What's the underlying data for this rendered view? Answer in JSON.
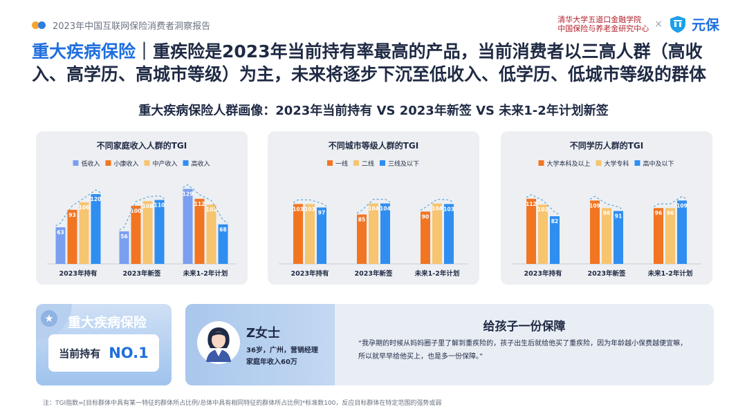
{
  "header": {
    "report_title": "2023年中国互联网保险消费者洞察报告",
    "institute_line1": "清华大学五道口金融学院",
    "institute_line2": "中国保险与养老金研究中心",
    "times": "×",
    "brand": "元保"
  },
  "headline": {
    "accent": "重大疾病保险",
    "text": "｜重疾险是2023年当前持有率最高的产品，当前消费者以三高人群（高收入、高学历、高城市等级）为主，未来将逐步下沉至低收入、低学历、低城市等级的群体"
  },
  "subtitle": "重大疾病保险人群画像：2023年当前持有 VS 2023年新签 VS 未来1-2年计划新签",
  "colors": {
    "blue_light": "#7a9ff0",
    "orange": "#f27522",
    "yellow": "#f7c470",
    "blue": "#2f8ef0",
    "accent": "#1f6fde",
    "dash": "#5aa6dd"
  },
  "chart_data": [
    {
      "type": "bar",
      "title": "不同家庭收入人群的TGI",
      "categories": [
        "2023年持有",
        "2023年新签",
        "未来1-2年计划"
      ],
      "series": [
        {
          "name": "低收入",
          "color": "#7a9ff0",
          "values": [
            63,
            56,
            129
          ]
        },
        {
          "name": "小康收入",
          "color": "#f27522",
          "values": [
            93,
            100,
            112
          ]
        },
        {
          "name": "中产收入",
          "color": "#f7c470",
          "values": [
            106,
            108,
            102
          ]
        },
        {
          "name": "高收入",
          "color": "#2f8ef0",
          "values": [
            120,
            110,
            68
          ]
        }
      ],
      "ylim": [
        0,
        145
      ],
      "grid": false,
      "legend": "top"
    },
    {
      "type": "bar",
      "title": "不同城市等级人群的TGI",
      "categories": [
        "2023年持有",
        "2023年新签",
        "未来1-2年计划"
      ],
      "series": [
        {
          "name": "一线",
          "color": "#f27522",
          "values": [
            103,
            85,
            90
          ]
        },
        {
          "name": "二线",
          "color": "#f7c470",
          "values": [
            103,
            104,
            104
          ]
        },
        {
          "name": "三线及以下",
          "color": "#2f8ef0",
          "values": [
            97,
            104,
            103
          ]
        }
      ],
      "ylim": [
        0,
        145
      ],
      "grid": false,
      "legend": "top"
    },
    {
      "type": "bar",
      "title": "不同学历人群的TGI",
      "categories": [
        "2023年持有",
        "2023年新签",
        "未来1-2年计划"
      ],
      "series": [
        {
          "name": "大学本科及以上",
          "color": "#f27522",
          "values": [
            112,
            109,
            96
          ]
        },
        {
          "name": "大学专科",
          "color": "#f7c470",
          "values": [
            102,
            96,
            96
          ]
        },
        {
          "name": "高中及以下",
          "color": "#2f8ef0",
          "values": [
            82,
            91,
            109
          ]
        }
      ],
      "ylim": [
        0,
        145
      ],
      "grid": false,
      "legend": "top"
    }
  ],
  "highlight": {
    "title": "重大疾病保险",
    "label": "当前持有",
    "value": "NO.1"
  },
  "persona": {
    "name": "Z女士",
    "info1": "36岁，广州，营销经理",
    "info2": "家庭年收入60万",
    "quote_title": "给孩子一份保障",
    "quote": "“我孕期的时候从妈妈圈子里了解到重疾险的，孩子出生后就给他买了重疾险，因为年龄越小保费越便宜嘛，所以就早早给他买上，也是多一份保障。”"
  },
  "footnote": "注：TGI指数=[目标群体中具有某一特征的群体所占比例/总体中具有相同特征的群体所占比例]*标准数100，反应目标群体在特定范围的强势或弱"
}
